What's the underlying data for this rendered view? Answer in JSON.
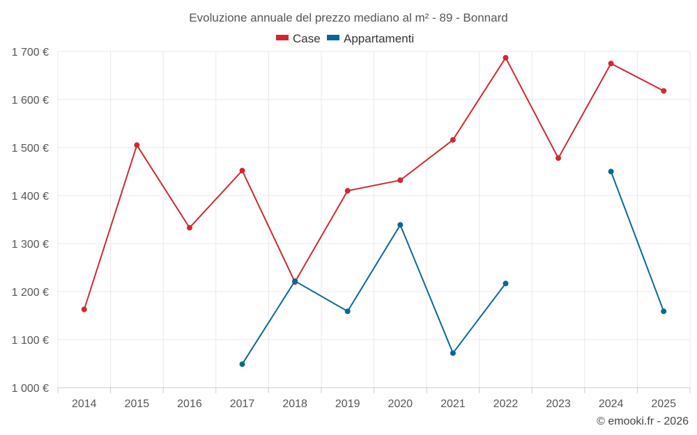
{
  "chart_data": {
    "type": "line",
    "title": "Evoluzione annuale del prezzo mediano al m² - 89 - Bonnard",
    "categories": [
      "2014",
      "2015",
      "2016",
      "2017",
      "2018",
      "2019",
      "2020",
      "2021",
      "2022",
      "2023",
      "2024",
      "2025"
    ],
    "series": [
      {
        "name": "Case",
        "color": "#d0282e",
        "values": [
          1163,
          1505,
          1333,
          1452,
          1220,
          1410,
          1432,
          1516,
          1687,
          1478,
          1675,
          1618
        ]
      },
      {
        "name": "Appartamenti",
        "color": "#0a6698",
        "values": [
          null,
          null,
          null,
          1049,
          1222,
          1159,
          1339,
          1072,
          1217,
          null,
          1450,
          1159
        ]
      }
    ],
    "ylim": [
      1000,
      1700
    ],
    "yticks": [
      1000,
      1100,
      1200,
      1300,
      1400,
      1500,
      1600,
      1700
    ],
    "ytick_labels": [
      "1 000 €",
      "1 100 €",
      "1 200 €",
      "1 300 €",
      "1 400 €",
      "1 500 €",
      "1 600 €",
      "1 700 €"
    ],
    "xlabel": "",
    "ylabel": "",
    "legend_position": "top-center",
    "grid": true
  },
  "credit": "© emooki.fr - 2026"
}
